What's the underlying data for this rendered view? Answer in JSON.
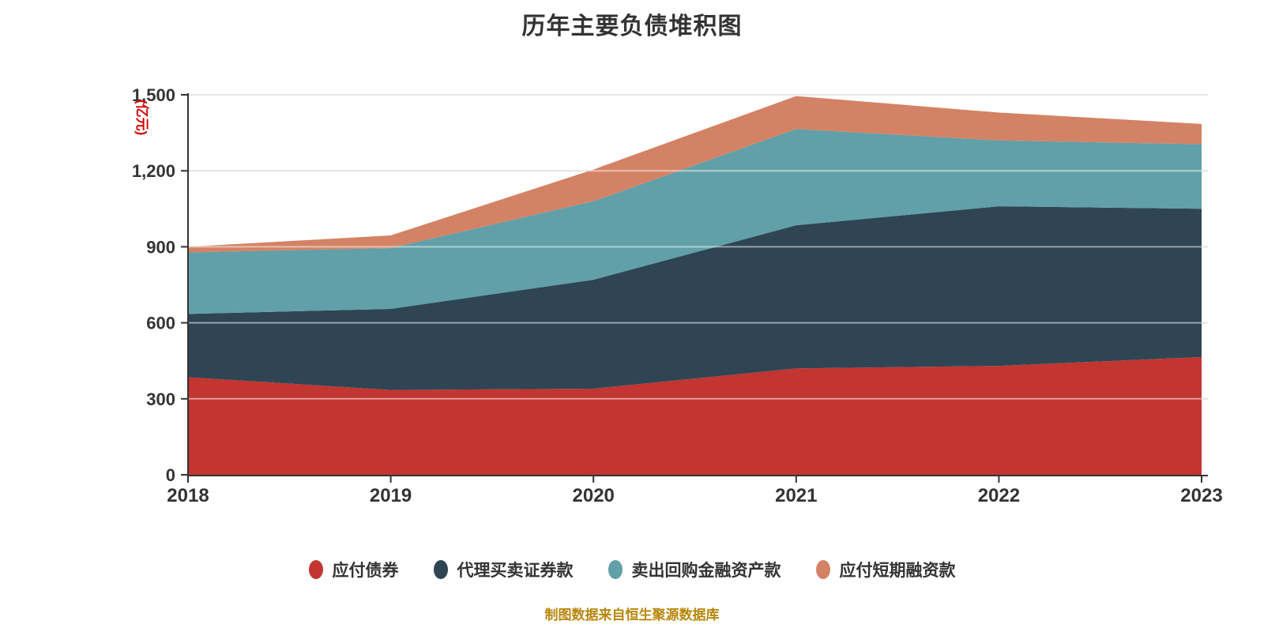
{
  "chart": {
    "title": "历年主要负债堆积图",
    "source_note": "制图数据来自恒生聚源数据库"
  },
  "colors": {
    "title_text": "#333333",
    "axis_line": "#333333",
    "axis_text": "#333333",
    "grid_line": "#cccccc",
    "grid_line_over_area": "rgba(255,255,255,0.5)",
    "legend_text": "#333333",
    "source_note_text": "#b8860b",
    "y_unit_text": "#d40000",
    "background": "#ffffff"
  },
  "chart_data": {
    "type": "area",
    "stacked": true,
    "title": "历年主要负债堆积图",
    "subtitle": "制图数据来自恒生聚源数据库",
    "xlabel": "",
    "ylabel": "(亿元)",
    "categories": [
      "2018",
      "2019",
      "2020",
      "2021",
      "2022",
      "2023"
    ],
    "series": [
      {
        "name": "应付债券",
        "color": "#c23531",
        "values": [
          385,
          335,
          340,
          420,
          430,
          465
        ]
      },
      {
        "name": "代理买卖证券款",
        "color": "#2f4554",
        "values": [
          250,
          320,
          430,
          565,
          630,
          585
        ]
      },
      {
        "name": "卖出回购金融资产款",
        "color": "#61a0a8",
        "values": [
          243,
          240,
          310,
          380,
          260,
          255
        ]
      },
      {
        "name": "应付短期融资款",
        "color": "#d48265",
        "values": [
          22,
          50,
          125,
          130,
          110,
          80
        ]
      }
    ],
    "stacked_totals": [
      900,
      945,
      1205,
      1495,
      1430,
      1385
    ],
    "ylim": [
      0,
      1500
    ],
    "ytick_values": [
      0,
      300,
      600,
      900,
      1200,
      1500
    ],
    "ytick_labels": [
      "0",
      "300",
      "600",
      "900",
      "1,200",
      "1,500"
    ],
    "grid": true,
    "legend_position": "bottom"
  }
}
